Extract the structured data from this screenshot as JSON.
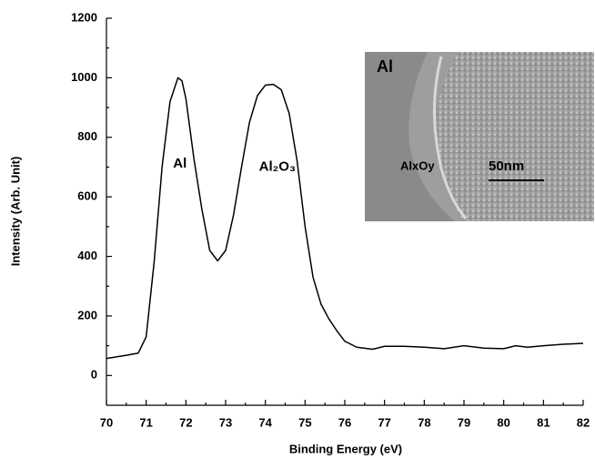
{
  "chart_data": {
    "type": "line",
    "x_label": "Binding Energy (eV)",
    "y_label": "Intensity (Arb. Unit)",
    "x": [
      70,
      70.5,
      70.8,
      71.0,
      71.2,
      71.4,
      71.6,
      71.8,
      71.9,
      72.0,
      72.2,
      72.4,
      72.6,
      72.8,
      73.0,
      73.2,
      73.4,
      73.6,
      73.8,
      74.0,
      74.2,
      74.4,
      74.6,
      74.8,
      75.0,
      75.2,
      75.4,
      75.6,
      75.8,
      76.0,
      76.3,
      76.7,
      77.0,
      77.5,
      78.0,
      78.5,
      79.0,
      79.5,
      80.0,
      80.3,
      80.6,
      81.0,
      81.5,
      82.0
    ],
    "series": [
      {
        "color": "#000000",
        "values": [
          57,
          68,
          75,
          130,
          380,
          700,
          920,
          1000,
          990,
          930,
          730,
          560,
          420,
          385,
          420,
          540,
          700,
          850,
          940,
          975,
          978,
          960,
          880,
          720,
          500,
          330,
          240,
          190,
          150,
          115,
          95,
          88,
          98,
          98,
          95,
          90,
          100,
          92,
          90,
          100,
          95,
          100,
          105,
          108
        ]
      }
    ],
    "xlim": [
      70,
      82
    ],
    "xticks": [
      70,
      71,
      72,
      73,
      74,
      75,
      76,
      77,
      78,
      79,
      80,
      81,
      82
    ],
    "ylim": [
      -100,
      1200
    ],
    "yticks": [
      0,
      200,
      400,
      600,
      800,
      1000,
      1200
    ],
    "annotations": [
      {
        "text": "Al",
        "x": 71.85,
        "y": 710
      },
      {
        "text": "Al₂O₃",
        "x": 74.3,
        "y": 700
      }
    ],
    "inset": {
      "labels": [
        "Al",
        "AlxOy",
        "50nm"
      ]
    }
  }
}
